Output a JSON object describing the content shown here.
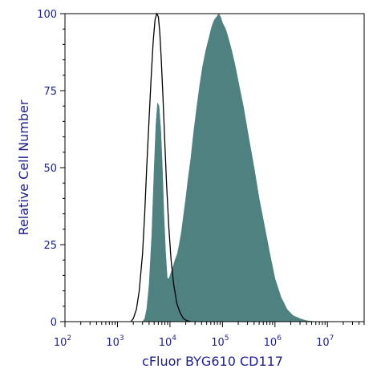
{
  "chart_data": {
    "type": "area",
    "title": "",
    "xlabel": "cFluor BYG610 CD117",
    "ylabel": "Relative Cell Number",
    "x_scale": "log",
    "xlim": [
      100,
      50000000
    ],
    "ylim": [
      0,
      100
    ],
    "x_ticks": [
      {
        "base": "10",
        "exp": "2",
        "value": 100
      },
      {
        "base": "10",
        "exp": "3",
        "value": 1000
      },
      {
        "base": "10",
        "exp": "4",
        "value": 10000
      },
      {
        "base": "10",
        "exp": "5",
        "value": 100000
      },
      {
        "base": "10",
        "exp": "6",
        "value": 1000000
      },
      {
        "base": "10",
        "exp": "7",
        "value": 10000000
      }
    ],
    "y_ticks": [
      "0",
      "25",
      "50",
      "75",
      "100"
    ],
    "grid": false,
    "legend": "none",
    "series": [
      {
        "style": "filled",
        "color": "#4f8180",
        "x": [
          3000,
          3300,
          3600,
          4000,
          4500,
          5000,
          5400,
          5800,
          6200,
          6700,
          7200,
          7700,
          8300,
          8900,
          9600,
          10500,
          11500,
          12500,
          13800,
          15000,
          16500,
          18000,
          20000,
          22000,
          25000,
          28000,
          32000,
          37000,
          42000,
          48000,
          55000,
          63000,
          70000,
          78000,
          85000,
          92000,
          100000,
          115000,
          130000,
          150000,
          175000,
          200000,
          250000,
          300000,
          400000,
          500000,
          650000,
          800000,
          1000000,
          1300000,
          1700000,
          2200000,
          3000000,
          4000000,
          6000000
        ],
        "y": [
          0,
          1,
          4,
          12,
          28,
          50,
          64,
          71,
          70,
          62,
          49,
          34,
          22,
          14,
          14,
          16,
          18,
          20,
          22,
          25,
          29,
          34,
          40,
          46,
          53,
          61,
          69,
          77,
          83,
          88,
          92,
          96,
          98,
          99,
          100,
          99,
          97,
          95,
          92,
          88,
          83,
          78,
          70,
          62,
          50,
          40,
          30,
          22,
          14,
          8,
          4,
          2,
          1,
          0.3,
          0
        ]
      },
      {
        "style": "outline",
        "color": "#000000",
        "x": [
          1800,
          2000,
          2300,
          2600,
          3000,
          3300,
          3600,
          4000,
          4400,
          4800,
          5200,
          5600,
          6000,
          6400,
          6800,
          7300,
          7900,
          8600,
          9500,
          10500,
          11800,
          13500,
          15500,
          18000,
          21000,
          25000
        ],
        "y": [
          0,
          1,
          4,
          10,
          22,
          35,
          50,
          66,
          80,
          91,
          98,
          100,
          99,
          94,
          86,
          74,
          60,
          45,
          31,
          20,
          12,
          6,
          3,
          1,
          0.3,
          0
        ]
      }
    ]
  }
}
